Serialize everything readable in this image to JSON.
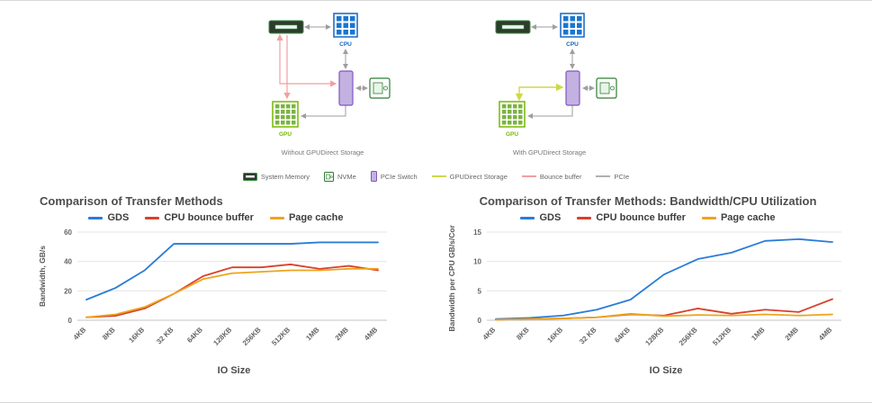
{
  "diagrams": {
    "without": {
      "caption": "Without GPUDirect Storage",
      "cpu_label": "CPU",
      "gpu_label": "GPU"
    },
    "with": {
      "caption": "With GPUDirect Storage",
      "cpu_label": "CPU",
      "gpu_label": "GPU"
    },
    "legend": {
      "system_memory": "System Memory",
      "nvme": "NVMe",
      "pcie_switch": "PCIe Switch",
      "gpudirect": "GPUDirect Storage",
      "bounce_buffer": "Bounce buffer",
      "pcie": "PCIe"
    },
    "legend_colors": {
      "gpudirect": "#cdd94a",
      "bounce_buffer": "#efa0a0",
      "pcie": "#b0b0b0"
    }
  },
  "chart_data": [
    {
      "type": "line",
      "title": "Comparison of Transfer Methods",
      "xlabel": "IO Size",
      "ylabel": "Bandwidth, GB/s",
      "categories": [
        "4KB",
        "8KB",
        "16KB",
        "32 KB",
        "64KB",
        "128KB",
        "256KB",
        "512KB",
        "1MB",
        "2MB",
        "4MB"
      ],
      "ylim": [
        0,
        60
      ],
      "yticks": [
        0,
        20,
        40,
        60
      ],
      "grid": "horizontal",
      "legend_position": "top",
      "series": [
        {
          "name": "GDS",
          "color": "#2a7cd8",
          "values": [
            14,
            22,
            34,
            52,
            52,
            52,
            52,
            52,
            53,
            53,
            53
          ]
        },
        {
          "name": "CPU bounce buffer",
          "color": "#d9402e",
          "values": [
            2,
            3,
            8,
            18,
            30,
            36,
            36,
            38,
            35,
            37,
            34
          ]
        },
        {
          "name": "Page cache",
          "color": "#eda41c",
          "values": [
            2,
            4,
            9,
            18,
            28,
            32,
            33,
            34,
            34,
            35,
            35
          ]
        }
      ]
    },
    {
      "type": "line",
      "title": "Comparison of Transfer Methods: Bandwidth/CPU Utilization",
      "xlabel": "IO Size",
      "ylabel": "Bandwidth per CPU GB/s/Core",
      "categories": [
        "4KB",
        "8KB",
        "16KB",
        "32 KB",
        "64KB",
        "128KB",
        "256KB",
        "512KB",
        "1MB",
        "2MB",
        "4MB"
      ],
      "ylim": [
        0,
        15
      ],
      "yticks": [
        0,
        5,
        10,
        15
      ],
      "grid": "horizontal",
      "legend_position": "top",
      "series": [
        {
          "name": "GDS",
          "color": "#2a7cd8",
          "values": [
            0.2,
            0.4,
            0.8,
            1.8,
            3.5,
            7.8,
            10.4,
            11.5,
            13.5,
            13.8,
            13.3
          ]
        },
        {
          "name": "CPU bounce buffer",
          "color": "#d9402e",
          "values": [
            0.1,
            0.2,
            0.3,
            0.5,
            1.0,
            0.8,
            2.0,
            1.1,
            1.8,
            1.4,
            3.6
          ]
        },
        {
          "name": "Page cache",
          "color": "#eda41c",
          "values": [
            0.1,
            0.2,
            0.3,
            0.5,
            1.1,
            0.7,
            0.9,
            0.8,
            1.0,
            0.8,
            1.0
          ]
        }
      ]
    }
  ]
}
